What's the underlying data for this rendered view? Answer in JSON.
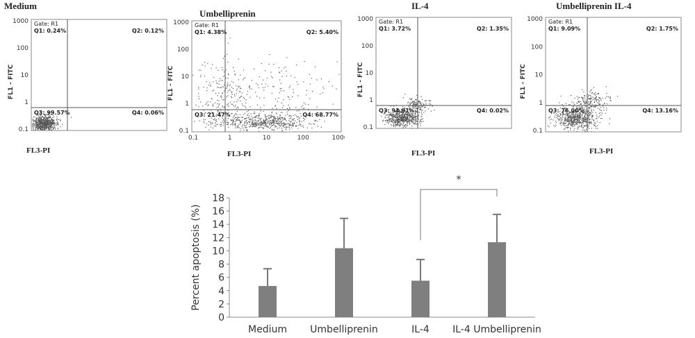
{
  "chart_data": [
    {
      "type": "scatter",
      "title": "Medium",
      "gate": "Gate: R1",
      "xlabel": "FL3-PI",
      "ylabel": "FL1 - FITC",
      "y_ticks": [
        "1000",
        "100",
        "10",
        "1",
        "0.1"
      ],
      "x_ticks": [],
      "quadrants": [
        {
          "label": "Q1: 0.24%"
        },
        {
          "label": "Q2: 0.12%"
        },
        {
          "label": "Q3: 99.57%"
        },
        {
          "label": "Q4: 0.06%"
        }
      ]
    },
    {
      "type": "scatter",
      "title": "Umbelliprenin",
      "gate": "Gate: R1",
      "xlabel": "FL3-PI",
      "ylabel": "FL1 - FITC",
      "y_ticks": [
        "1000",
        "100",
        "10",
        "1",
        "0.1"
      ],
      "x_ticks": [
        "0.1",
        "1",
        "10",
        "100",
        "1000"
      ],
      "quadrants": [
        {
          "label": "Q1: 4.38%"
        },
        {
          "label": "Q2: 5.40%"
        },
        {
          "label": "Q3: 21.47%"
        },
        {
          "label": "Q4: 68.77%"
        }
      ]
    },
    {
      "type": "scatter",
      "title": "IL-4",
      "gate": "Gate: R1",
      "xlabel": "FL3-PI",
      "ylabel": "FL1 - FITC",
      "y_ticks": [
        "1000",
        "100",
        "10",
        "1",
        "0.1"
      ],
      "x_ticks": [],
      "quadrants": [
        {
          "label": "Q1: 3.72%"
        },
        {
          "label": "Q2: 1.35%"
        },
        {
          "label": "Q3: 94.91%"
        },
        {
          "label": "Q4: 0.02%"
        }
      ]
    },
    {
      "type": "scatter",
      "title": "Umbelliprenin IL-4",
      "gate": "Gate: R1",
      "xlabel": "FL3-PI",
      "ylabel": "FL1 - FITC",
      "y_ticks": [
        "1000",
        "100",
        "10",
        "1",
        "0.1"
      ],
      "x_ticks": [],
      "quadrants": [
        {
          "label": "Q1: 9.09%"
        },
        {
          "label": "Q2: 1.75%"
        },
        {
          "label": "Q3: 76.00%"
        },
        {
          "label": "Q4: 13.16%"
        }
      ]
    },
    {
      "type": "bar",
      "categories": [
        "Medium",
        "Umbelliprenin",
        "IL-4",
        "IL-4 Umbelliprenin"
      ],
      "values": [
        4.7,
        10.4,
        5.5,
        11.3
      ],
      "errors": [
        2.6,
        4.5,
        3.2,
        4.2
      ],
      "ylabel": "Percent apoptosis (%)",
      "xlabel": "",
      "ylim": [
        0,
        18
      ],
      "yticks": [
        0,
        2,
        4,
        6,
        8,
        10,
        12,
        14,
        16,
        18
      ],
      "bar_color": "#7f7f7f",
      "significance": {
        "from": "IL-4",
        "to": "IL-4 Umbelliprenin",
        "label": "*"
      },
      "grid": false
    }
  ]
}
